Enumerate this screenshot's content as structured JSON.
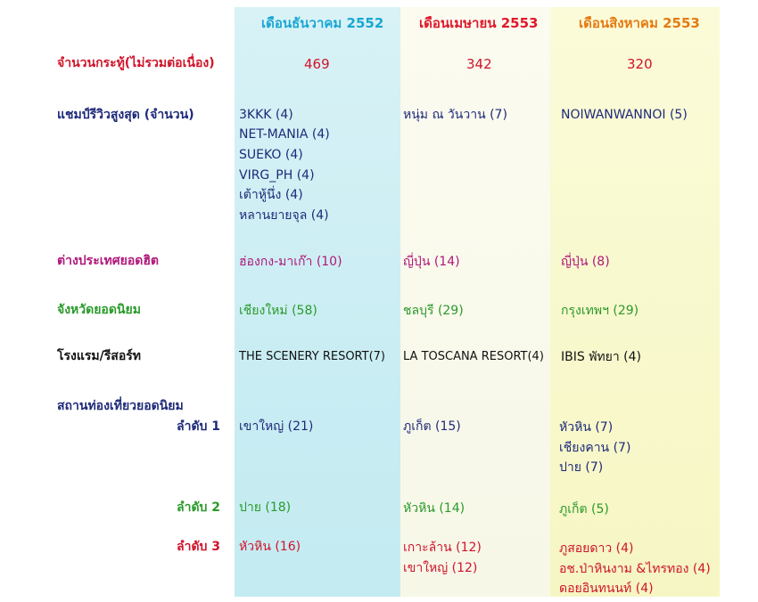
{
  "columns": {
    "dec": "เดือนธันวาคม 2552",
    "apr": "เดือนเมษายน 2553",
    "aug": "เดือนสิงหาคม 2553"
  },
  "colors": {
    "dec_band": "#c9edf3",
    "apr_band": "#f7f7e8",
    "aug_band": "#f6f6c4",
    "dec_header": "#1aa6d4",
    "apr_header": "#e0182a",
    "aug_header": "#e57a12"
  },
  "rows": {
    "threads": {
      "label": "จำนวนกระทู้(ไม่รวมต่อเนื่อง)",
      "dec": "469",
      "apr": "342",
      "aug": "320"
    },
    "champion": {
      "label": "แชมป์รีวิวสูงสุด (จำนวน)",
      "dec": [
        "3KKK  (4)",
        "NET-MANIA  (4)",
        "SUEKO  (4)",
        "VIRG_PH  (4)",
        "เต้าหู้นึ่ง  (4)",
        "หลานยายจุล  (4)"
      ],
      "apr": [
        "หนุ่ม ณ วันวาน  (7)"
      ],
      "aug": [
        "NOIWANWANNOI (5)"
      ]
    },
    "foreign": {
      "label": "ต่างประเทศยอดฮิต",
      "dec": "ฮ่องกง-มาเก๊า  (10)",
      "apr": "ญี่ปุ่น  (14)",
      "aug": "ญี่ปุ่น  (8)"
    },
    "province": {
      "label": "จังหวัดยอดนิยม",
      "dec": "เชียงใหม่  (58)",
      "apr": "ชลบุรี  (29)",
      "aug": "กรุงเทพฯ  (29)"
    },
    "hotel": {
      "label": "โรงแรม/รีสอร์ท",
      "dec": "THE SCENERY RESORT(7)",
      "apr": "LA TOSCANA RESORT(4)",
      "aug": "IBIS พัทยา  (4)"
    },
    "attractions": {
      "label": "สถานท่องเที่ยวยอดนิยม",
      "rank1": {
        "label": "ลำดับ 1",
        "dec": [
          "เขาใหญ่  (21)"
        ],
        "apr": [
          "ภูเก็ต  (15)"
        ],
        "aug": [
          "หัวหิน  (7)",
          "เชียงคาน  (7)",
          "ปาย  (7)"
        ]
      },
      "rank2": {
        "label": "ลำดับ 2",
        "dec": [
          "ปาย  (18)"
        ],
        "apr": [
          "หัวหิน (14)"
        ],
        "aug": [
          "ภูเก็ต  (5)"
        ]
      },
      "rank3": {
        "label": "ลำดับ 3",
        "dec": [
          "หัวหิน (16)"
        ],
        "apr": [
          "เกาะล้าน (12)",
          "เขาใหญ่  (12)"
        ],
        "aug": [
          "ภูสอยดาว (4)",
          "อช.ป่าหินงาม &ไทรทอง (4)",
          "ดอยอินทนนท์ (4)"
        ]
      }
    }
  }
}
